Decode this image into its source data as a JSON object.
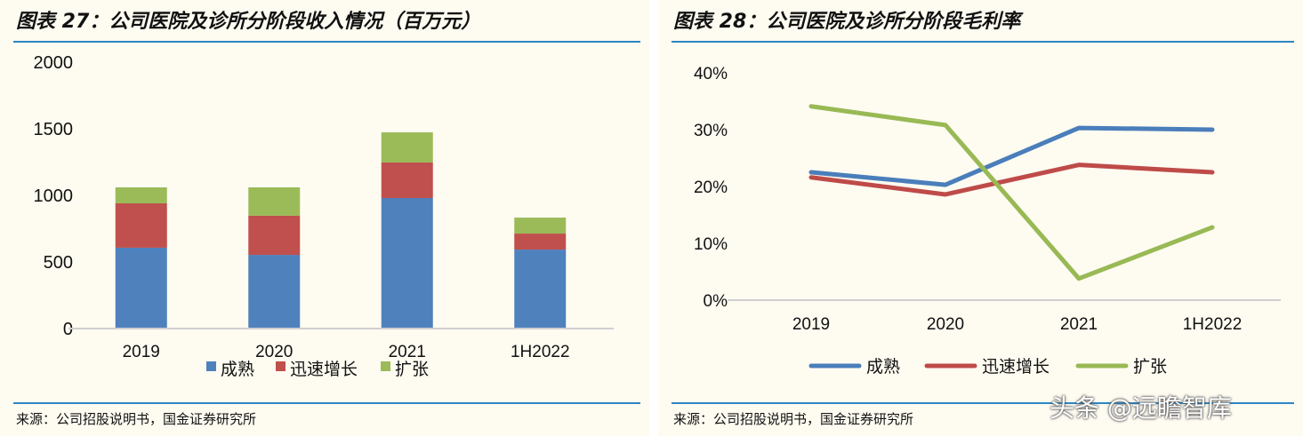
{
  "watermark": "头条 @远瞻智库",
  "chart_data": [
    {
      "type": "bar",
      "stacked": true,
      "title": "图表 27：公司医院及诊所分阶段收入情况（百万元）",
      "source": "来源：公司招股说明书，国金证券研究所",
      "categories": [
        "2019",
        "2020",
        "2021",
        "1H2022"
      ],
      "ylim": [
        0,
        2000
      ],
      "yticks": [
        "0",
        "500",
        "1000",
        "1500",
        "2000"
      ],
      "grid": false,
      "legend": "bottom",
      "series": [
        {
          "name": "成熟",
          "color": "#4f81bd",
          "values": [
            607,
            553,
            980,
            593
          ]
        },
        {
          "name": "迅速增长",
          "color": "#c0504d",
          "values": [
            333,
            294,
            267,
            120
          ]
        },
        {
          "name": "扩张",
          "color": "#9bbb59",
          "values": [
            120,
            213,
            226,
            120
          ]
        }
      ]
    },
    {
      "type": "line",
      "title": "图表 28：公司医院及诊所分阶段毛利率",
      "source": "来源：公司招股说明书，国金证券研究所",
      "categories": [
        "2019",
        "2020",
        "2021",
        "1H2022"
      ],
      "ylim": [
        0,
        40
      ],
      "yticks": [
        "0%",
        "10%",
        "20%",
        "30%",
        "40%"
      ],
      "grid": false,
      "legend": "bottom",
      "series": [
        {
          "name": "成熟",
          "color": "#4a7ebb",
          "values": [
            22.5,
            20.3,
            30.3,
            30.0
          ]
        },
        {
          "name": "迅速增长",
          "color": "#be4b48",
          "values": [
            21.6,
            18.6,
            23.8,
            22.5
          ]
        },
        {
          "name": "扩张",
          "color": "#98b954",
          "values": [
            34.1,
            30.8,
            3.8,
            12.8
          ]
        }
      ]
    }
  ]
}
